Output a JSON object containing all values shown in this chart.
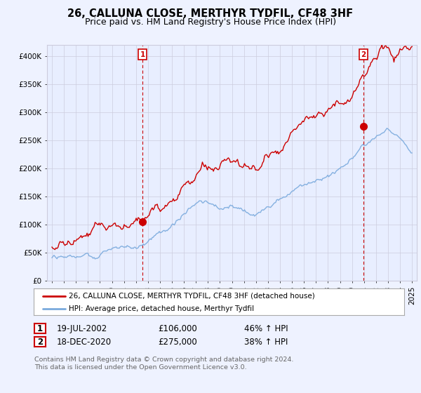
{
  "title": "26, CALLUNA CLOSE, MERTHYR TYDFIL, CF48 3HF",
  "subtitle": "Price paid vs. HM Land Registry's House Price Index (HPI)",
  "xlim_start": 1994.6,
  "xlim_end": 2025.4,
  "ylim": [
    0,
    420000
  ],
  "yticks": [
    0,
    50000,
    100000,
    150000,
    200000,
    250000,
    300000,
    350000,
    400000
  ],
  "ytick_labels": [
    "£0",
    "£50K",
    "£100K",
    "£150K",
    "£200K",
    "£250K",
    "£300K",
    "£350K",
    "£400K"
  ],
  "red_color": "#cc0000",
  "blue_color": "#7aaadd",
  "sale1_x": 2002.54,
  "sale1_y": 106000,
  "sale2_x": 2020.96,
  "sale2_y": 275000,
  "legend_line1": "26, CALLUNA CLOSE, MERTHYR TYDFIL, CF48 3HF (detached house)",
  "legend_line2": "HPI: Average price, detached house, Merthyr Tydfil",
  "table_row1_num": "1",
  "table_row1_date": "19-JUL-2002",
  "table_row1_price": "£106,000",
  "table_row1_hpi": "46% ↑ HPI",
  "table_row2_num": "2",
  "table_row2_date": "18-DEC-2020",
  "table_row2_price": "£275,000",
  "table_row2_hpi": "38% ↑ HPI",
  "footnote": "Contains HM Land Registry data © Crown copyright and database right 2024.\nThis data is licensed under the Open Government Licence v3.0.",
  "background_color": "#eef2ff",
  "plot_bg_color": "#e8eeff",
  "grid_color": "#ccccdd",
  "title_fontsize": 10.5,
  "subtitle_fontsize": 9,
  "tick_fontsize": 7.5
}
